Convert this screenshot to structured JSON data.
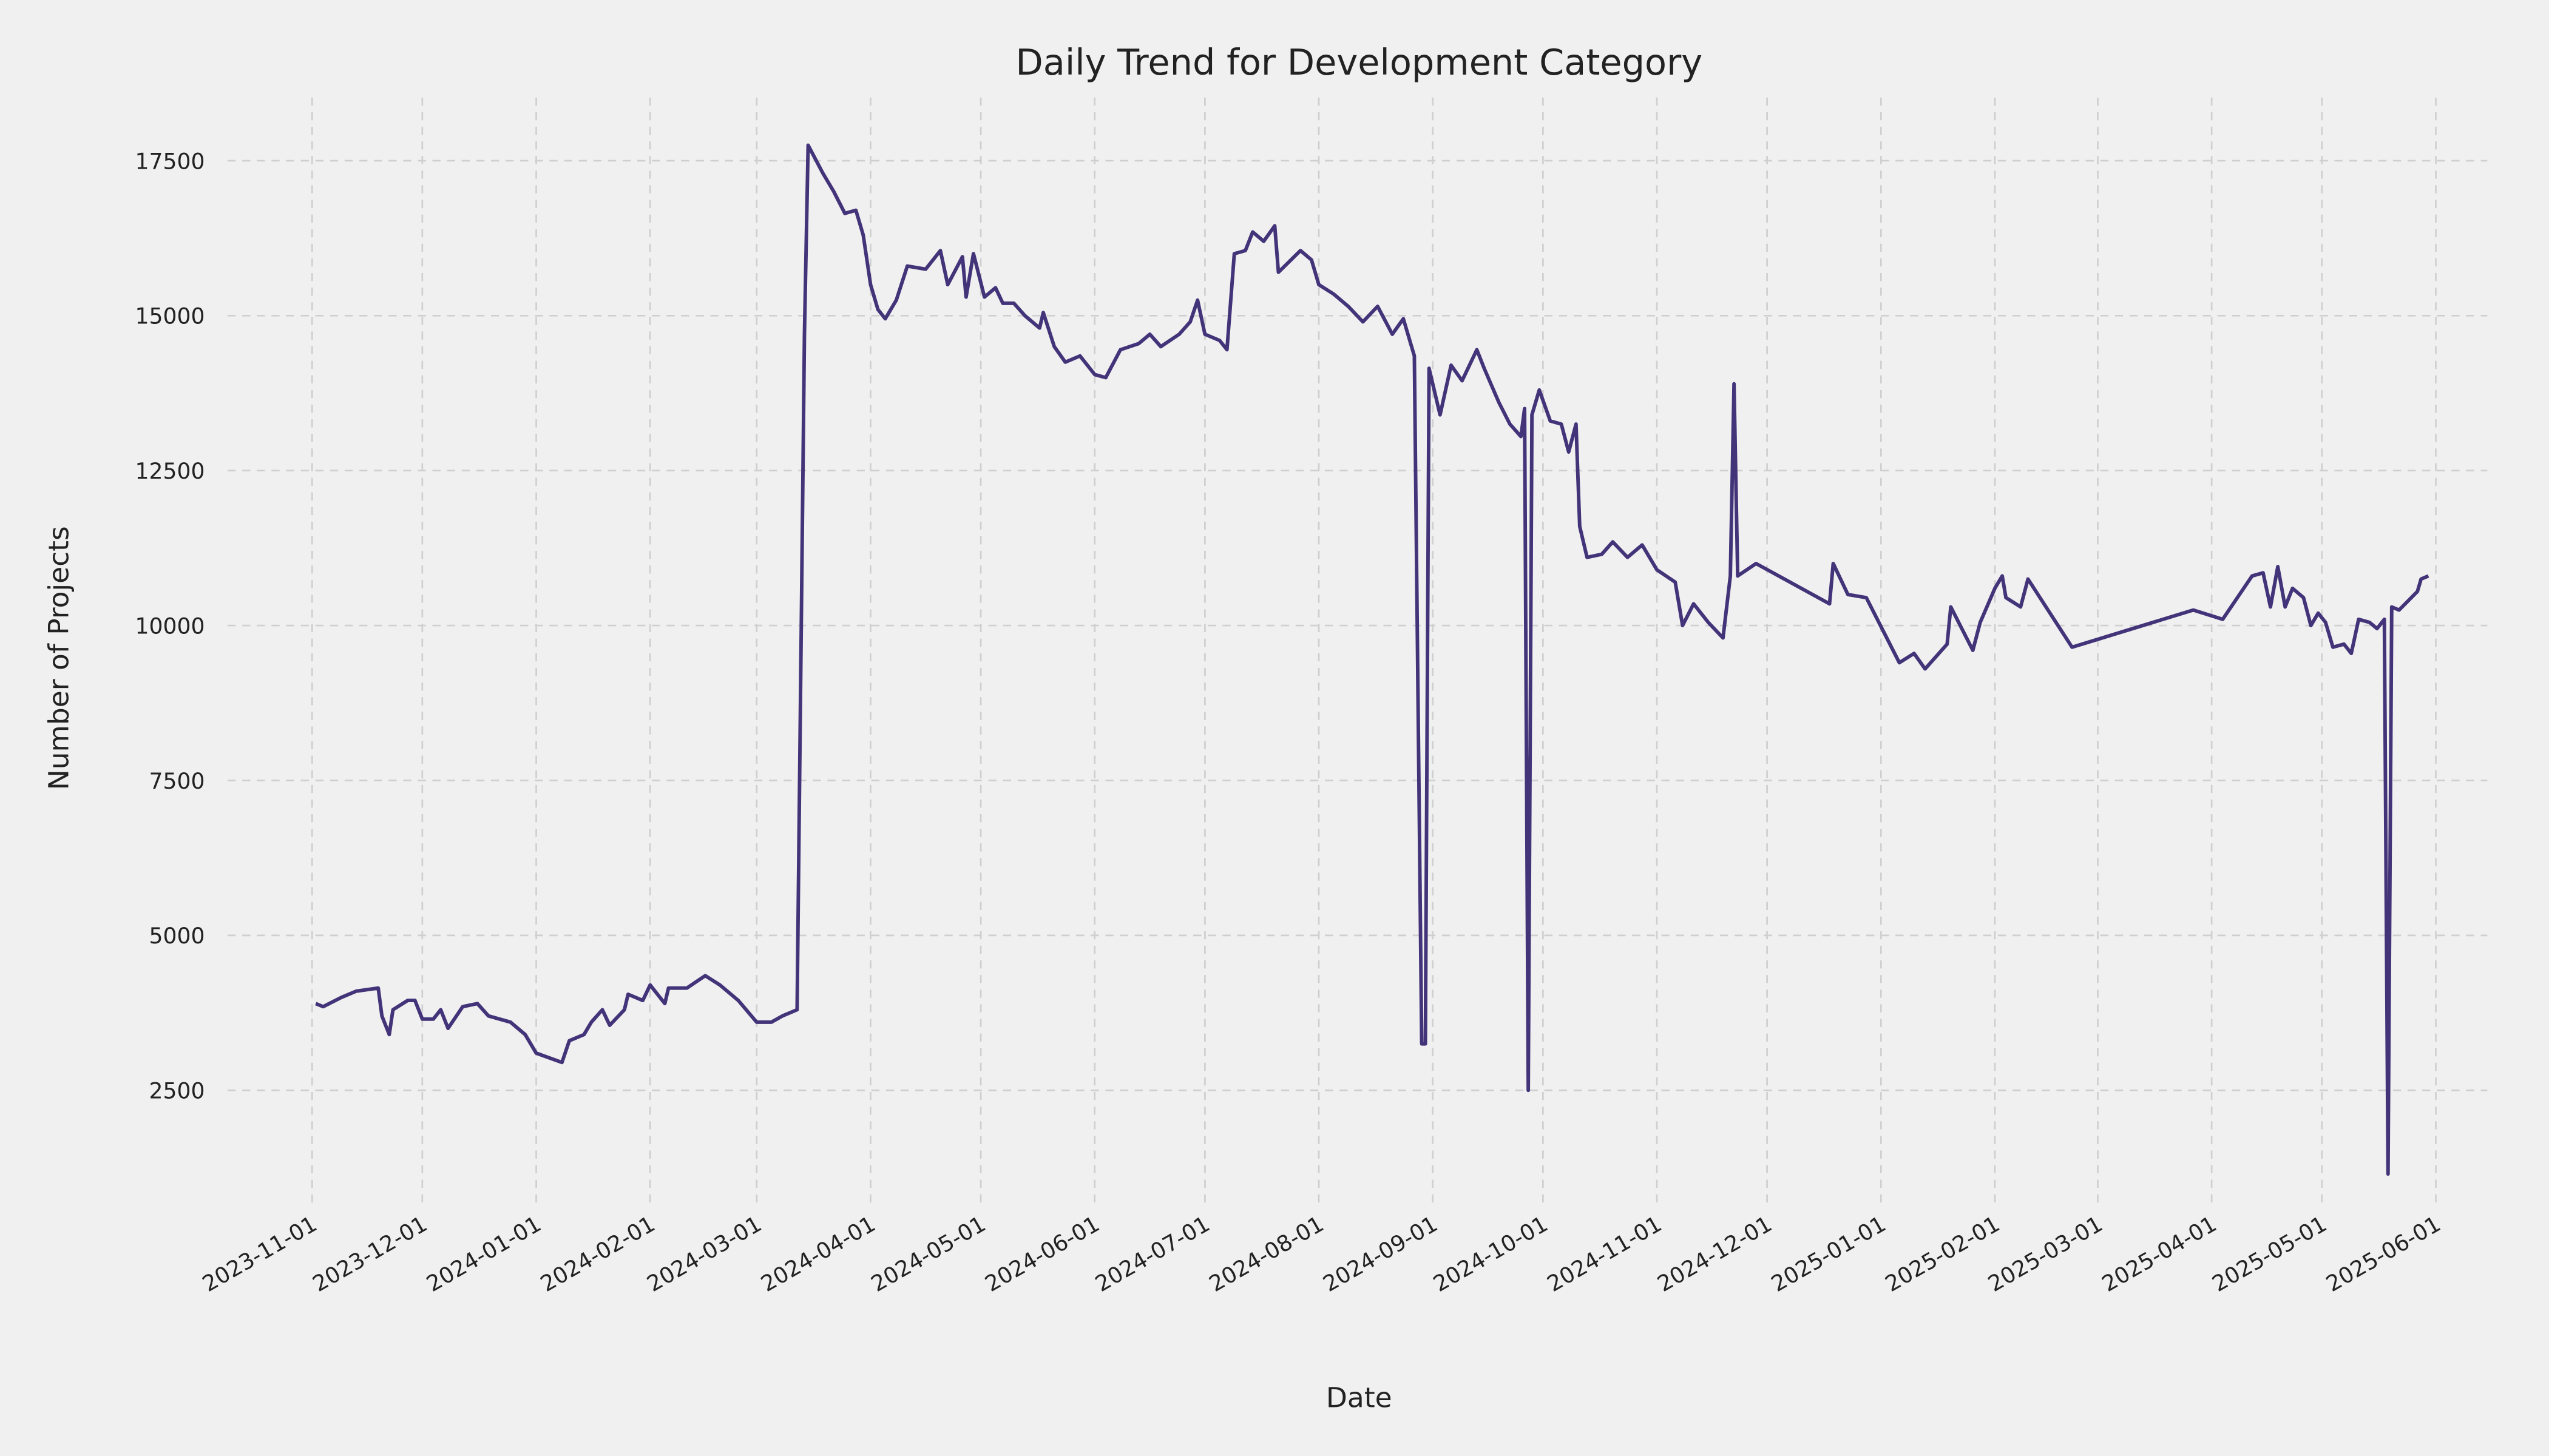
{
  "chart_data": {
    "type": "line",
    "title": "Daily Trend for Development Category",
    "x_label": "Date",
    "y_label": "Number of Projects",
    "xlim": [
      "2023-10-09",
      "2025-06-15"
    ],
    "ylim": [
      690,
      18520
    ],
    "xticks": [
      "2023-11-01",
      "2023-12-01",
      "2024-01-01",
      "2024-02-01",
      "2024-03-01",
      "2024-04-01",
      "2024-05-01",
      "2024-06-01",
      "2024-07-01",
      "2024-08-01",
      "2024-09-01",
      "2024-10-01",
      "2024-11-01",
      "2024-12-01",
      "2025-01-01",
      "2025-02-01",
      "2025-03-01",
      "2025-04-01",
      "2025-05-01",
      "2025-06-01"
    ],
    "yticks": [
      2500,
      5000,
      7500,
      10000,
      12500,
      15000,
      17500
    ],
    "grid": true,
    "x": [
      "2023-11-02",
      "2023-11-04",
      "2023-11-09",
      "2023-11-13",
      "2023-11-19",
      "2023-11-20",
      "2023-11-22",
      "2023-11-23",
      "2023-11-27",
      "2023-11-29",
      "2023-12-01",
      "2023-12-04",
      "2023-12-06",
      "2023-12-08",
      "2023-12-12",
      "2023-12-16",
      "2023-12-19",
      "2023-12-25",
      "2023-12-29",
      "2024-01-01",
      "2024-01-08",
      "2024-01-10",
      "2024-01-14",
      "2024-01-16",
      "2024-01-19",
      "2024-01-21",
      "2024-01-25",
      "2024-01-26",
      "2024-01-30",
      "2024-02-01",
      "2024-02-05",
      "2024-02-06",
      "2024-02-11",
      "2024-02-16",
      "2024-02-20",
      "2024-02-25",
      "2024-03-01",
      "2024-03-05",
      "2024-03-08",
      "2024-03-12",
      "2024-03-14",
      "2024-03-15",
      "2024-03-19",
      "2024-03-22",
      "2024-03-25",
      "2024-03-28",
      "2024-03-30",
      "2024-04-01",
      "2024-04-03",
      "2024-04-05",
      "2024-04-08",
      "2024-04-11",
      "2024-04-16",
      "2024-04-20",
      "2024-04-22",
      "2024-04-26",
      "2024-04-27",
      "2024-04-29",
      "2024-05-02",
      "2024-05-05",
      "2024-05-07",
      "2024-05-10",
      "2024-05-13",
      "2024-05-17",
      "2024-05-18",
      "2024-05-21",
      "2024-05-24",
      "2024-05-28",
      "2024-06-01",
      "2024-06-04",
      "2024-06-08",
      "2024-06-13",
      "2024-06-16",
      "2024-06-19",
      "2024-06-24",
      "2024-06-27",
      "2024-06-29",
      "2024-07-01",
      "2024-07-05",
      "2024-07-07",
      "2024-07-09",
      "2024-07-12",
      "2024-07-14",
      "2024-07-17",
      "2024-07-20",
      "2024-07-21",
      "2024-07-27",
      "2024-07-30",
      "2024-08-01",
      "2024-08-05",
      "2024-08-09",
      "2024-08-13",
      "2024-08-17",
      "2024-08-21",
      "2024-08-24",
      "2024-08-27",
      "2024-08-29",
      "2024-08-30",
      "2024-08-31",
      "2024-09-03",
      "2024-09-06",
      "2024-09-09",
      "2024-09-13",
      "2024-09-15",
      "2024-09-19",
      "2024-09-22",
      "2024-09-25",
      "2024-09-26",
      "2024-09-27",
      "2024-09-28",
      "2024-09-30",
      "2024-10-03",
      "2024-10-06",
      "2024-10-08",
      "2024-10-10",
      "2024-10-11",
      "2024-10-13",
      "2024-10-17",
      "2024-10-20",
      "2024-10-24",
      "2024-10-28",
      "2024-11-01",
      "2024-11-06",
      "2024-11-08",
      "2024-11-11",
      "2024-11-15",
      "2024-11-19",
      "2024-11-21",
      "2024-11-22",
      "2024-11-23",
      "2024-11-28",
      "2024-12-18",
      "2024-12-19",
      "2024-12-23",
      "2024-12-28",
      "2025-01-06",
      "2025-01-10",
      "2025-01-13",
      "2025-01-19",
      "2025-01-20",
      "2025-01-26",
      "2025-01-28",
      "2025-02-01",
      "2025-02-03",
      "2025-02-04",
      "2025-02-08",
      "2025-02-10",
      "2025-02-22",
      "2025-03-27",
      "2025-04-04",
      "2025-04-12",
      "2025-04-15",
      "2025-04-17",
      "2025-04-19",
      "2025-04-21",
      "2025-04-23",
      "2025-04-26",
      "2025-04-28",
      "2025-04-30",
      "2025-05-02",
      "2025-05-04",
      "2025-05-07",
      "2025-05-09",
      "2025-05-11",
      "2025-05-14",
      "2025-05-16",
      "2025-05-18",
      "2025-05-19",
      "2025-05-20",
      "2025-05-22",
      "2025-05-27",
      "2025-05-28",
      "2025-05-30"
    ],
    "series": [
      {
        "name": "Development",
        "color": "#433479",
        "values": [
          3900,
          3850,
          4000,
          4100,
          4150,
          3700,
          3400,
          3800,
          3950,
          3950,
          3650,
          3650,
          3800,
          3500,
          3850,
          3900,
          3700,
          3600,
          3400,
          3100,
          2950,
          3300,
          3400,
          3600,
          3800,
          3550,
          3800,
          4050,
          3950,
          4200,
          3900,
          4150,
          4150,
          4350,
          4200,
          3950,
          3600,
          3600,
          3700,
          3800,
          14700,
          17750,
          17300,
          17000,
          16650,
          16700,
          16300,
          15500,
          15100,
          14950,
          15250,
          15800,
          15750,
          16050,
          15500,
          15950,
          15300,
          16000,
          15300,
          15450,
          15200,
          15200,
          15000,
          14800,
          15050,
          14500,
          14250,
          14350,
          14050,
          14000,
          14450,
          14550,
          14700,
          14500,
          14700,
          14900,
          15250,
          14700,
          14600,
          14450,
          16000,
          16050,
          16350,
          16200,
          16450,
          15700,
          16050,
          15900,
          15500,
          15350,
          15150,
          14900,
          15150,
          14700,
          14950,
          14350,
          3250,
          3250,
          14150,
          13400,
          14200,
          13950,
          14450,
          14150,
          13600,
          13250,
          13050,
          13500,
          2500,
          13400,
          13800,
          13300,
          13250,
          12800,
          13250,
          11600,
          11100,
          11150,
          11350,
          11100,
          11300,
          10900,
          10700,
          10000,
          10350,
          10050,
          9800,
          10800,
          13900,
          10800,
          11000,
          10350,
          11000,
          10500,
          10450,
          9400,
          9550,
          9300,
          9700,
          10300,
          9600,
          10050,
          10600,
          10800,
          10450,
          10300,
          10750,
          9650,
          10250,
          10100,
          10800,
          10850,
          10300,
          10950,
          10300,
          10600,
          10450,
          10000,
          10200,
          10050,
          9650,
          9700,
          9550,
          10100,
          10050,
          9950,
          10100,
          1150,
          10300,
          10250,
          10550,
          10750,
          10800
        ]
      }
    ]
  }
}
